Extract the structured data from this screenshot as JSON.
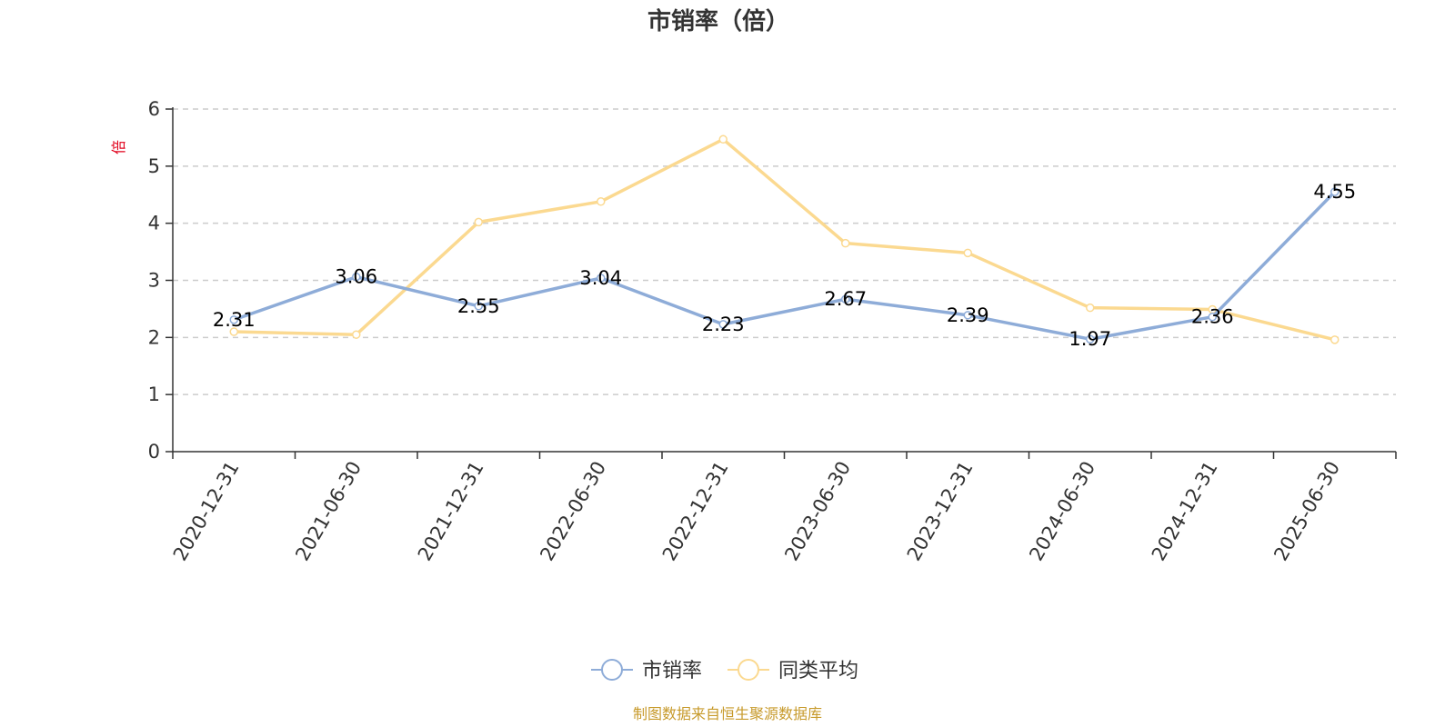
{
  "chart_data": {
    "type": "line",
    "title": "市销率（倍）",
    "ylabel": "倍",
    "xlabel": "",
    "ylim": [
      0,
      6
    ],
    "yticks": [
      0,
      1,
      2,
      3,
      4,
      5,
      6
    ],
    "grid": "horizontal-dashed",
    "legend_position": "bottom",
    "categories": [
      "2020-12-31",
      "2021-06-30",
      "2021-12-31",
      "2022-06-30",
      "2022-12-31",
      "2023-06-30",
      "2023-12-31",
      "2024-06-30",
      "2024-12-31",
      "2025-06-30"
    ],
    "series": [
      {
        "name": "市销率",
        "color": "#8eacd8",
        "show_labels": true,
        "values": [
          2.31,
          3.06,
          2.55,
          3.04,
          2.23,
          2.67,
          2.39,
          1.97,
          2.36,
          4.55
        ]
      },
      {
        "name": "同类平均",
        "color": "#fbd990",
        "show_labels": false,
        "values": [
          2.1,
          2.05,
          4.02,
          4.38,
          5.47,
          3.65,
          3.48,
          2.52,
          2.49,
          1.96
        ]
      }
    ],
    "source": "制图数据来自恒生聚源数据库"
  }
}
